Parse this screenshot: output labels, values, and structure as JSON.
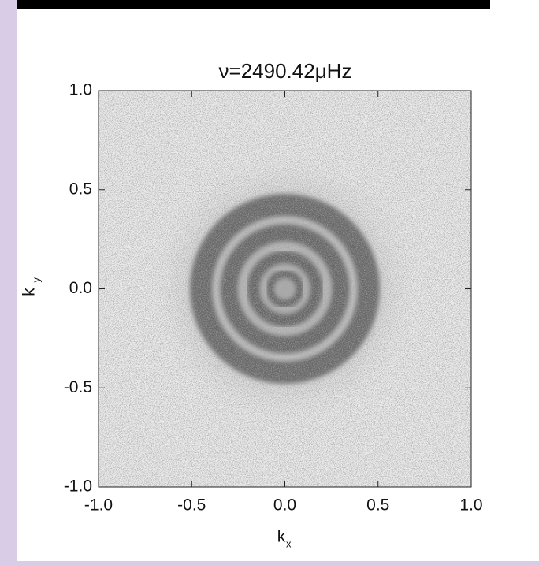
{
  "chart_data": {
    "type": "rings",
    "title": "ν=2490.42μHz",
    "x_label": "k",
    "x_label_sub": "x",
    "y_label": "k",
    "y_label_sub": "y",
    "xlim": [
      -1.0,
      1.0
    ],
    "ylim": [
      -1.0,
      1.0
    ],
    "xticks": [
      {
        "value": -1,
        "label": "-1.0"
      },
      {
        "value": -0.5,
        "label": "-0.5"
      },
      {
        "value": 0,
        "label": "0.0"
      },
      {
        "value": 0.5,
        "label": "0.5"
      },
      {
        "value": 1,
        "label": "1.0"
      }
    ],
    "yticks": [
      {
        "value": -1,
        "label": "-1.0"
      },
      {
        "value": -0.5,
        "label": "-0.5"
      },
      {
        "value": 0,
        "label": "0.0"
      },
      {
        "value": 0.5,
        "label": "0.5"
      },
      {
        "value": 1,
        "label": "1.0"
      }
    ],
    "rings": [
      0.08,
      0.17,
      0.3,
      0.45
    ],
    "color": "#555555"
  }
}
